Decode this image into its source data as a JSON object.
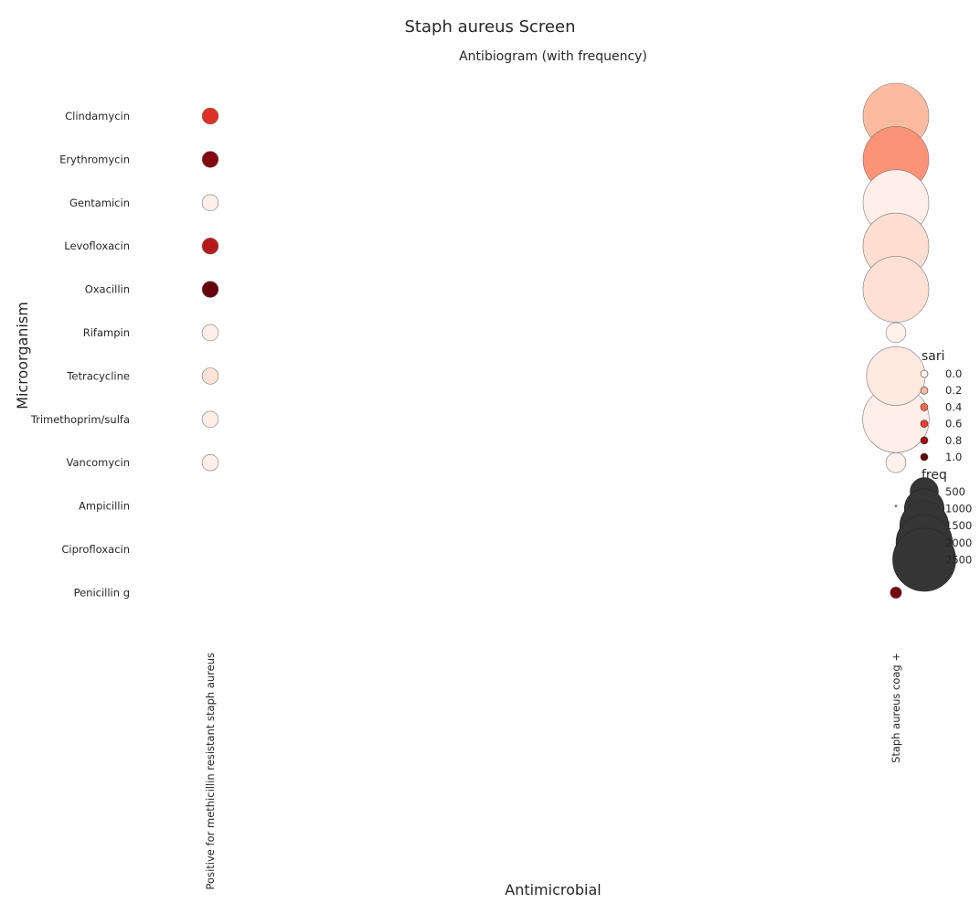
{
  "figure_title": "Staph aureus Screen",
  "chart_data": {
    "type": "scatter",
    "title": "Antibiogram (with frequency)",
    "xlabel": "Antimicrobial",
    "ylabel": "Microorganism",
    "x_categories": [
      "Positive for methicillin resistant staph aureus",
      "Staph aureus coag +"
    ],
    "y_categories": [
      "Clindamycin",
      "Erythromycin",
      "Gentamicin",
      "Levofloxacin",
      "Oxacillin",
      "Rifampin",
      "Tetracycline",
      "Trimethoprim/sulfa",
      "Vancomycin",
      "Ampicillin",
      "Ciprofloxacin",
      "Penicillin g"
    ],
    "color_scale": [
      "#fff5f0",
      "#fcbba1",
      "#fb6a4a",
      "#ef3b2c",
      "#a50f15",
      "#67000d"
    ],
    "color_range": [
      0,
      1
    ],
    "size_range": [
      0,
      2000
    ],
    "points": [
      {
        "x": "Positive for methicillin resistant staph aureus",
        "y": "Clindamycin",
        "sari": 0.65,
        "freq": 60
      },
      {
        "x": "Positive for methicillin resistant staph aureus",
        "y": "Erythromycin",
        "sari": 0.9,
        "freq": 60
      },
      {
        "x": "Positive for methicillin resistant staph aureus",
        "y": "Gentamicin",
        "sari": 0.02,
        "freq": 60
      },
      {
        "x": "Positive for methicillin resistant staph aureus",
        "y": "Levofloxacin",
        "sari": 0.75,
        "freq": 60
      },
      {
        "x": "Positive for methicillin resistant staph aureus",
        "y": "Oxacillin",
        "sari": 1.0,
        "freq": 60
      },
      {
        "x": "Positive for methicillin resistant staph aureus",
        "y": "Rifampin",
        "sari": 0.02,
        "freq": 60
      },
      {
        "x": "Positive for methicillin resistant staph aureus",
        "y": "Tetracycline",
        "sari": 0.06,
        "freq": 60
      },
      {
        "x": "Positive for methicillin resistant staph aureus",
        "y": "Trimethoprim/sulfa",
        "sari": 0.03,
        "freq": 60
      },
      {
        "x": "Positive for methicillin resistant staph aureus",
        "y": "Vancomycin",
        "sari": 0.02,
        "freq": 60
      },
      {
        "x": "Staph aureus coag +",
        "y": "Clindamycin",
        "sari": 0.2,
        "freq": 980
      },
      {
        "x": "Staph aureus coag +",
        "y": "Erythromycin",
        "sari": 0.3,
        "freq": 980
      },
      {
        "x": "Staph aureus coag +",
        "y": "Gentamicin",
        "sari": 0.02,
        "freq": 980
      },
      {
        "x": "Staph aureus coag +",
        "y": "Levofloxacin",
        "sari": 0.08,
        "freq": 980
      },
      {
        "x": "Staph aureus coag +",
        "y": "Oxacillin",
        "sari": 0.07,
        "freq": 980
      },
      {
        "x": "Staph aureus coag +",
        "y": "Rifampin",
        "sari": 0.01,
        "freq": 90
      },
      {
        "x": "Staph aureus coag +",
        "y": "Tetracycline",
        "sari": 0.04,
        "freq": 780
      },
      {
        "x": "Staph aureus coag +",
        "y": "Trimethoprim/sulfa",
        "sari": 0.02,
        "freq": 1000
      },
      {
        "x": "Staph aureus coag +",
        "y": "Vancomycin",
        "sari": 0.01,
        "freq": 90
      },
      {
        "x": "Staph aureus coag +",
        "y": "Ampicillin",
        "sari": 0.5,
        "freq": 1
      },
      {
        "x": "Staph aureus coag +",
        "y": "Penicillin g",
        "sari": 0.95,
        "freq": 30
      }
    ],
    "legend": {
      "placement": "right",
      "color_title": "sari",
      "color_entries": [
        {
          "label": "0.0",
          "value": 0.0
        },
        {
          "label": "0.2",
          "value": 0.2
        },
        {
          "label": "0.4",
          "value": 0.4
        },
        {
          "label": "0.6",
          "value": 0.6
        },
        {
          "label": "0.8",
          "value": 0.8
        },
        {
          "label": "1.0",
          "value": 1.0
        }
      ],
      "size_title": "freq",
      "size_entries": [
        {
          "label": "500",
          "value": 500
        },
        {
          "label": "1000",
          "value": 1000
        },
        {
          "label": "1500",
          "value": 1500
        },
        {
          "label": "2000",
          "value": 2000
        },
        {
          "label": "2500",
          "value": 2500
        }
      ]
    },
    "grid": false
  }
}
